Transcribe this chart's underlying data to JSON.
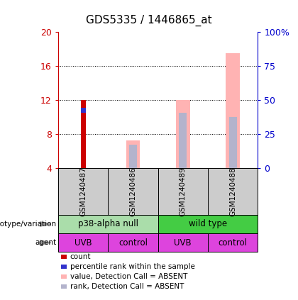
{
  "title": "GDS5335 / 1446865_at",
  "samples": [
    "GSM1240487",
    "GSM1240486",
    "GSM1240489",
    "GSM1240488"
  ],
  "x_positions": [
    0,
    1,
    2,
    3
  ],
  "ylim_left": [
    4,
    20
  ],
  "ylim_right": [
    0,
    100
  ],
  "yticks_left": [
    4,
    8,
    12,
    16,
    20
  ],
  "ytick_labels_right": [
    "0",
    "25",
    "50",
    "75",
    "100%"
  ],
  "count_values": [
    12.0,
    null,
    null,
    null
  ],
  "percentile_values": [
    10.5,
    null,
    null,
    null
  ],
  "value_absent": [
    null,
    7.3,
    12.0,
    17.5
  ],
  "rank_absent": [
    null,
    6.8,
    10.5,
    10.0
  ],
  "count_color": "#cc0000",
  "percentile_color": "#3333cc",
  "value_absent_color": "#ffb3b3",
  "rank_absent_color": "#b3b3cc",
  "sample_box_color": "#cccccc",
  "geno_null_color": "#aaddaa",
  "geno_wt_color": "#44cc44",
  "agent_color": "#dd44dd",
  "legend_items": [
    {
      "color": "#cc0000",
      "label": "count"
    },
    {
      "color": "#3333cc",
      "label": "percentile rank within the sample"
    },
    {
      "color": "#ffb3b3",
      "label": "value, Detection Call = ABSENT"
    },
    {
      "color": "#b3b3cc",
      "label": "rank, Detection Call = ABSENT"
    }
  ]
}
